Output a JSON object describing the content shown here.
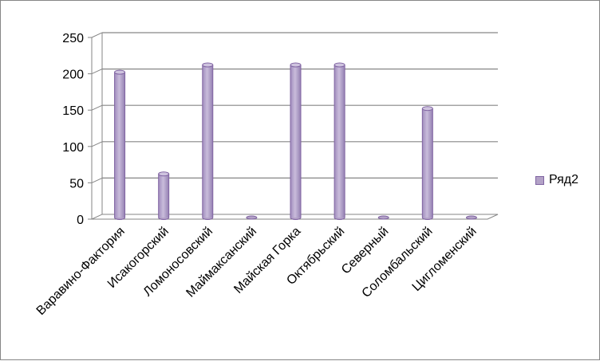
{
  "chart_data": {
    "type": "bar",
    "categories": [
      "Варавино-Фактория",
      "Исакогорский",
      "Ломоносовский",
      "Маймаксанский",
      "Майская Горка",
      "Октябрьский",
      "Северный",
      "Соломбальский",
      "Цигломенский"
    ],
    "series": [
      {
        "name": "Ряд2",
        "values": [
          200,
          60,
          210,
          0,
          210,
          210,
          0,
          150,
          0
        ]
      }
    ],
    "yticks": [
      "0",
      "50",
      "100",
      "150",
      "200",
      "250"
    ],
    "ylim": [
      0,
      250
    ],
    "grid": true,
    "legend_position": "right",
    "colors": {
      "bar_fill": "#b3a2c7",
      "bar_edge": "#8064a2",
      "grid": "#868686",
      "axis": "#868686"
    }
  }
}
